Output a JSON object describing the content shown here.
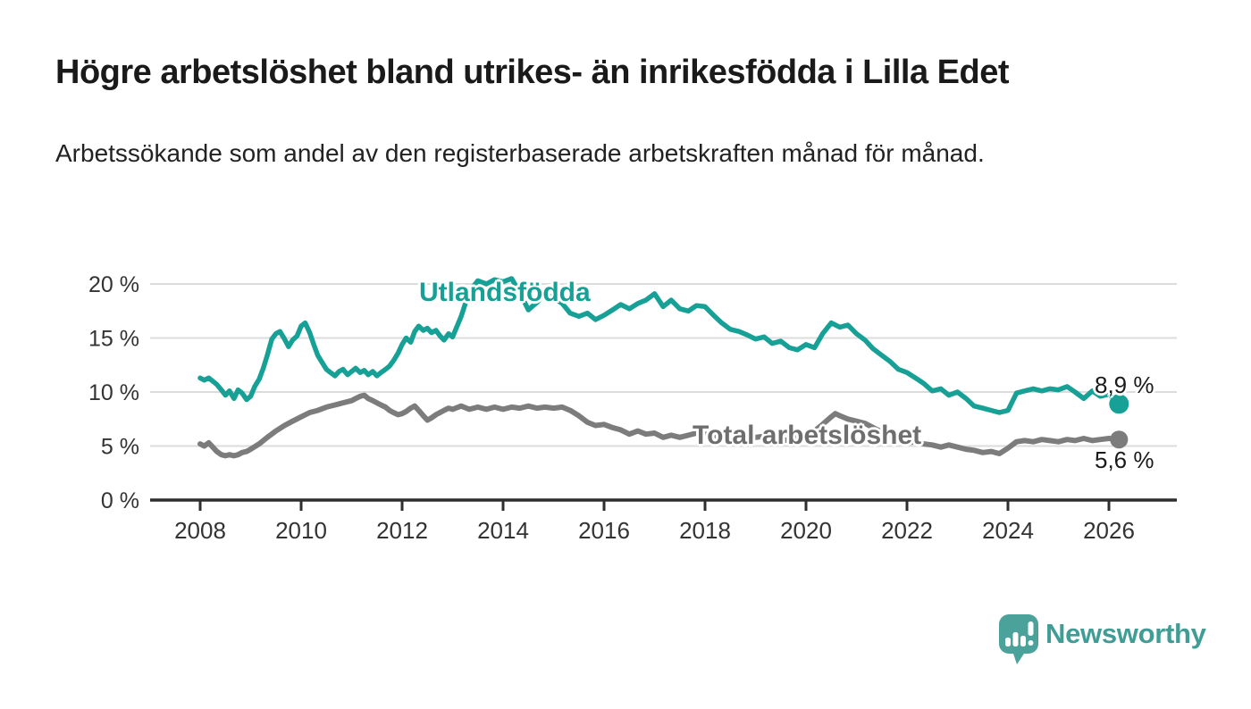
{
  "header": {
    "title": "Högre arbetslöshet bland utrikes- än inrikesfödda i Lilla Edet",
    "subtitle": "Arbetssökande som andel av den registerbaserade arbetskraften månad för månad."
  },
  "chart_data": {
    "type": "line",
    "title": "Högre arbetslöshet bland utrikes- än inrikesfödda i Lilla Edet",
    "xlabel": "",
    "ylabel": "",
    "grid": true,
    "x_axis": {
      "min": 2007,
      "max": 2027.3,
      "ticks": [
        2008,
        2010,
        2012,
        2014,
        2016,
        2018,
        2020,
        2022,
        2024,
        2026
      ]
    },
    "y_axis": {
      "min": 0,
      "max": 20,
      "ticks": [
        0,
        5,
        10,
        15,
        20
      ],
      "tick_labels": [
        "0 %",
        "5 %",
        "10 %",
        "15 %",
        "20 %"
      ]
    },
    "series": [
      {
        "name": "Utlandsfödda",
        "color": "#17A096",
        "label_color": "#17A096",
        "end_label": "8,9 %",
        "end_value": 8.9,
        "points": [
          [
            2008.0,
            11.3
          ],
          [
            2008.08,
            11.1
          ],
          [
            2008.17,
            11.3
          ],
          [
            2008.25,
            11.0
          ],
          [
            2008.33,
            10.7
          ],
          [
            2008.42,
            10.2
          ],
          [
            2008.5,
            9.7
          ],
          [
            2008.58,
            10.1
          ],
          [
            2008.67,
            9.4
          ],
          [
            2008.75,
            10.2
          ],
          [
            2008.83,
            9.9
          ],
          [
            2008.92,
            9.3
          ],
          [
            2009.0,
            9.6
          ],
          [
            2009.08,
            10.5
          ],
          [
            2009.17,
            11.2
          ],
          [
            2009.25,
            12.2
          ],
          [
            2009.33,
            13.4
          ],
          [
            2009.42,
            14.9
          ],
          [
            2009.5,
            15.4
          ],
          [
            2009.58,
            15.6
          ],
          [
            2009.67,
            14.9
          ],
          [
            2009.75,
            14.2
          ],
          [
            2009.83,
            14.8
          ],
          [
            2009.92,
            15.2
          ],
          [
            2010.0,
            16.1
          ],
          [
            2010.08,
            16.4
          ],
          [
            2010.17,
            15.5
          ],
          [
            2010.25,
            14.4
          ],
          [
            2010.33,
            13.4
          ],
          [
            2010.42,
            12.7
          ],
          [
            2010.5,
            12.1
          ],
          [
            2010.58,
            11.8
          ],
          [
            2010.67,
            11.5
          ],
          [
            2010.75,
            11.9
          ],
          [
            2010.83,
            12.1
          ],
          [
            2010.92,
            11.6
          ],
          [
            2011.0,
            11.9
          ],
          [
            2011.08,
            12.2
          ],
          [
            2011.17,
            11.8
          ],
          [
            2011.25,
            12.0
          ],
          [
            2011.33,
            11.6
          ],
          [
            2011.42,
            11.9
          ],
          [
            2011.5,
            11.5
          ],
          [
            2011.58,
            11.8
          ],
          [
            2011.67,
            12.1
          ],
          [
            2011.75,
            12.4
          ],
          [
            2011.83,
            12.9
          ],
          [
            2011.92,
            13.6
          ],
          [
            2012.0,
            14.4
          ],
          [
            2012.08,
            15.0
          ],
          [
            2012.17,
            14.6
          ],
          [
            2012.25,
            15.6
          ],
          [
            2012.33,
            16.1
          ],
          [
            2012.42,
            15.7
          ],
          [
            2012.5,
            15.9
          ],
          [
            2012.58,
            15.5
          ],
          [
            2012.67,
            15.7
          ],
          [
            2012.75,
            15.2
          ],
          [
            2012.83,
            14.8
          ],
          [
            2012.92,
            15.4
          ],
          [
            2013.0,
            15.1
          ],
          [
            2013.17,
            17.0
          ],
          [
            2013.33,
            19.3
          ],
          [
            2013.5,
            20.3
          ],
          [
            2013.67,
            20.0
          ],
          [
            2013.83,
            20.4
          ],
          [
            2014.0,
            20.2
          ],
          [
            2014.17,
            20.5
          ],
          [
            2014.33,
            19.2
          ],
          [
            2014.5,
            17.6
          ],
          [
            2014.67,
            18.3
          ],
          [
            2014.83,
            19.1
          ],
          [
            2015.0,
            18.7
          ],
          [
            2015.17,
            18.2
          ],
          [
            2015.33,
            17.3
          ],
          [
            2015.5,
            17.0
          ],
          [
            2015.67,
            17.3
          ],
          [
            2015.83,
            16.7
          ],
          [
            2016.0,
            17.1
          ],
          [
            2016.17,
            17.6
          ],
          [
            2016.33,
            18.1
          ],
          [
            2016.5,
            17.7
          ],
          [
            2016.67,
            18.2
          ],
          [
            2016.83,
            18.5
          ],
          [
            2017.0,
            19.1
          ],
          [
            2017.17,
            17.9
          ],
          [
            2017.33,
            18.5
          ],
          [
            2017.5,
            17.7
          ],
          [
            2017.67,
            17.5
          ],
          [
            2017.83,
            18.0
          ],
          [
            2018.0,
            17.9
          ],
          [
            2018.17,
            17.1
          ],
          [
            2018.33,
            16.4
          ],
          [
            2018.5,
            15.8
          ],
          [
            2018.67,
            15.6
          ],
          [
            2018.83,
            15.3
          ],
          [
            2019.0,
            14.9
          ],
          [
            2019.17,
            15.1
          ],
          [
            2019.33,
            14.5
          ],
          [
            2019.5,
            14.7
          ],
          [
            2019.67,
            14.1
          ],
          [
            2019.83,
            13.9
          ],
          [
            2020.0,
            14.4
          ],
          [
            2020.17,
            14.1
          ],
          [
            2020.33,
            15.4
          ],
          [
            2020.5,
            16.4
          ],
          [
            2020.67,
            16.0
          ],
          [
            2020.83,
            16.2
          ],
          [
            2021.0,
            15.4
          ],
          [
            2021.17,
            14.8
          ],
          [
            2021.33,
            14.0
          ],
          [
            2021.5,
            13.4
          ],
          [
            2021.67,
            12.8
          ],
          [
            2021.83,
            12.1
          ],
          [
            2022.0,
            11.8
          ],
          [
            2022.17,
            11.3
          ],
          [
            2022.33,
            10.8
          ],
          [
            2022.5,
            10.1
          ],
          [
            2022.67,
            10.3
          ],
          [
            2022.83,
            9.7
          ],
          [
            2023.0,
            10.0
          ],
          [
            2023.17,
            9.4
          ],
          [
            2023.33,
            8.7
          ],
          [
            2023.5,
            8.5
          ],
          [
            2023.67,
            8.3
          ],
          [
            2023.83,
            8.1
          ],
          [
            2024.0,
            8.3
          ],
          [
            2024.17,
            9.9
          ],
          [
            2024.33,
            10.1
          ],
          [
            2024.5,
            10.3
          ],
          [
            2024.67,
            10.1
          ],
          [
            2024.83,
            10.3
          ],
          [
            2025.0,
            10.2
          ],
          [
            2025.17,
            10.5
          ],
          [
            2025.33,
            10.0
          ],
          [
            2025.5,
            9.4
          ],
          [
            2025.67,
            10.1
          ],
          [
            2025.83,
            9.6
          ],
          [
            2026.0,
            9.8
          ],
          [
            2026.2,
            8.9
          ]
        ]
      },
      {
        "name": "Total arbetslöshet",
        "color": "#7C7C7C",
        "label_color": "#6E6E6E",
        "end_label": "5,6 %",
        "end_value": 5.6,
        "points": [
          [
            2008.0,
            5.2
          ],
          [
            2008.08,
            5.0
          ],
          [
            2008.17,
            5.3
          ],
          [
            2008.25,
            4.9
          ],
          [
            2008.33,
            4.5
          ],
          [
            2008.42,
            4.2
          ],
          [
            2008.5,
            4.1
          ],
          [
            2008.58,
            4.2
          ],
          [
            2008.67,
            4.1
          ],
          [
            2008.75,
            4.2
          ],
          [
            2008.83,
            4.4
          ],
          [
            2008.92,
            4.5
          ],
          [
            2009.0,
            4.7
          ],
          [
            2009.17,
            5.2
          ],
          [
            2009.33,
            5.8
          ],
          [
            2009.5,
            6.4
          ],
          [
            2009.67,
            6.9
          ],
          [
            2009.83,
            7.3
          ],
          [
            2010.0,
            7.7
          ],
          [
            2010.17,
            8.1
          ],
          [
            2010.33,
            8.3
          ],
          [
            2010.5,
            8.6
          ],
          [
            2010.67,
            8.8
          ],
          [
            2010.83,
            9.0
          ],
          [
            2011.0,
            9.2
          ],
          [
            2011.08,
            9.4
          ],
          [
            2011.17,
            9.6
          ],
          [
            2011.25,
            9.7
          ],
          [
            2011.33,
            9.4
          ],
          [
            2011.42,
            9.2
          ],
          [
            2011.5,
            9.0
          ],
          [
            2011.58,
            8.8
          ],
          [
            2011.67,
            8.6
          ],
          [
            2011.75,
            8.3
          ],
          [
            2011.83,
            8.1
          ],
          [
            2011.92,
            7.9
          ],
          [
            2012.0,
            8.0
          ],
          [
            2012.08,
            8.2
          ],
          [
            2012.17,
            8.5
          ],
          [
            2012.25,
            8.7
          ],
          [
            2012.33,
            8.3
          ],
          [
            2012.42,
            7.8
          ],
          [
            2012.5,
            7.4
          ],
          [
            2012.58,
            7.6
          ],
          [
            2012.67,
            7.9
          ],
          [
            2012.75,
            8.1
          ],
          [
            2012.83,
            8.3
          ],
          [
            2012.92,
            8.5
          ],
          [
            2013.0,
            8.4
          ],
          [
            2013.17,
            8.7
          ],
          [
            2013.33,
            8.4
          ],
          [
            2013.5,
            8.6
          ],
          [
            2013.67,
            8.4
          ],
          [
            2013.83,
            8.6
          ],
          [
            2014.0,
            8.4
          ],
          [
            2014.17,
            8.6
          ],
          [
            2014.33,
            8.5
          ],
          [
            2014.5,
            8.7
          ],
          [
            2014.67,
            8.5
          ],
          [
            2014.83,
            8.6
          ],
          [
            2015.0,
            8.5
          ],
          [
            2015.17,
            8.6
          ],
          [
            2015.33,
            8.3
          ],
          [
            2015.5,
            7.8
          ],
          [
            2015.67,
            7.2
          ],
          [
            2015.83,
            6.9
          ],
          [
            2016.0,
            7.0
          ],
          [
            2016.17,
            6.7
          ],
          [
            2016.33,
            6.5
          ],
          [
            2016.5,
            6.1
          ],
          [
            2016.67,
            6.4
          ],
          [
            2016.83,
            6.1
          ],
          [
            2017.0,
            6.2
          ],
          [
            2017.17,
            5.8
          ],
          [
            2017.33,
            6.0
          ],
          [
            2017.5,
            5.8
          ],
          [
            2017.67,
            6.0
          ],
          [
            2017.83,
            6.2
          ],
          [
            2018.0,
            6.1
          ],
          [
            2018.17,
            6.0
          ],
          [
            2018.33,
            5.8
          ],
          [
            2018.5,
            5.7
          ],
          [
            2018.67,
            5.9
          ],
          [
            2018.83,
            5.6
          ],
          [
            2019.0,
            5.8
          ],
          [
            2019.17,
            5.9
          ],
          [
            2019.33,
            5.7
          ],
          [
            2019.5,
            5.6
          ],
          [
            2019.67,
            5.5
          ],
          [
            2019.83,
            5.9
          ],
          [
            2020.0,
            6.1
          ],
          [
            2020.17,
            6.4
          ],
          [
            2020.33,
            7.0
          ],
          [
            2020.5,
            7.7
          ],
          [
            2020.58,
            8.0
          ],
          [
            2020.67,
            7.8
          ],
          [
            2020.83,
            7.5
          ],
          [
            2021.0,
            7.3
          ],
          [
            2021.17,
            7.1
          ],
          [
            2021.33,
            6.7
          ],
          [
            2021.5,
            6.3
          ],
          [
            2021.67,
            5.9
          ],
          [
            2021.83,
            5.6
          ],
          [
            2022.0,
            5.3
          ],
          [
            2022.17,
            5.4
          ],
          [
            2022.33,
            5.2
          ],
          [
            2022.5,
            5.1
          ],
          [
            2022.67,
            4.9
          ],
          [
            2022.83,
            5.1
          ],
          [
            2023.0,
            4.9
          ],
          [
            2023.17,
            4.7
          ],
          [
            2023.33,
            4.6
          ],
          [
            2023.5,
            4.4
          ],
          [
            2023.67,
            4.5
          ],
          [
            2023.83,
            4.3
          ],
          [
            2024.0,
            4.8
          ],
          [
            2024.17,
            5.4
          ],
          [
            2024.33,
            5.5
          ],
          [
            2024.5,
            5.4
          ],
          [
            2024.67,
            5.6
          ],
          [
            2024.83,
            5.5
          ],
          [
            2025.0,
            5.4
          ],
          [
            2025.17,
            5.6
          ],
          [
            2025.33,
            5.5
          ],
          [
            2025.5,
            5.7
          ],
          [
            2025.67,
            5.5
          ],
          [
            2025.83,
            5.6
          ],
          [
            2026.0,
            5.7
          ],
          [
            2026.2,
            5.6
          ]
        ]
      }
    ],
    "legend_position": "inline-labels"
  },
  "footer": {
    "brand": "Newsworthy",
    "logo_icon": "bar-chart-speech-bubble-icon"
  },
  "colors": {
    "accent_teal": "#17A096",
    "line_gray": "#7C7C7C",
    "series_label_gray": "#6E6E6E",
    "grid": "#DCDCDC",
    "axis": "#2E2E2E",
    "axis_text": "#333333",
    "title_text": "#1A1A1A",
    "brand_bubble": "#4AA29B",
    "brand_wordmark": "#3F9D96",
    "background": "#FFFFFF"
  }
}
